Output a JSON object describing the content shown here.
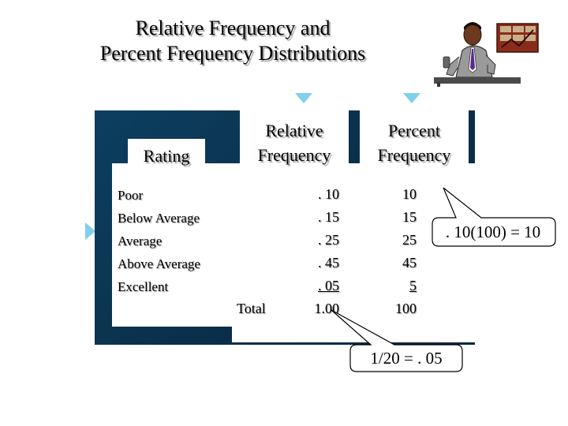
{
  "title": {
    "line1": "Relative Frequency and",
    "line2": "Percent Frequency Distributions"
  },
  "headers": {
    "rating": "Rating",
    "relative_line1": "Relative",
    "relative_line2": "Frequency",
    "percent_line1": "Percent",
    "percent_line2": "Frequency"
  },
  "rows": [
    {
      "rating": "Poor",
      "relative": ". 10",
      "percent": "10"
    },
    {
      "rating": "Below Average",
      "relative": ". 15",
      "percent": "15"
    },
    {
      "rating": "Average",
      "relative": ". 25",
      "percent": "25"
    },
    {
      "rating": "Above Average",
      "relative": ". 45",
      "percent": "45"
    },
    {
      "rating": "Excellent",
      "relative": ". 05",
      "percent": "5"
    }
  ],
  "total": {
    "label": "Total",
    "relative": "1.00",
    "percent": "100"
  },
  "callouts": {
    "percent_example": ". 10(100) = 10",
    "relative_example": "1/20 = . 05"
  },
  "colors": {
    "panel": "#0d3f60",
    "pointer": "#7fd0ec"
  },
  "icons": {
    "clipart": "businessman-at-desk-icon"
  }
}
